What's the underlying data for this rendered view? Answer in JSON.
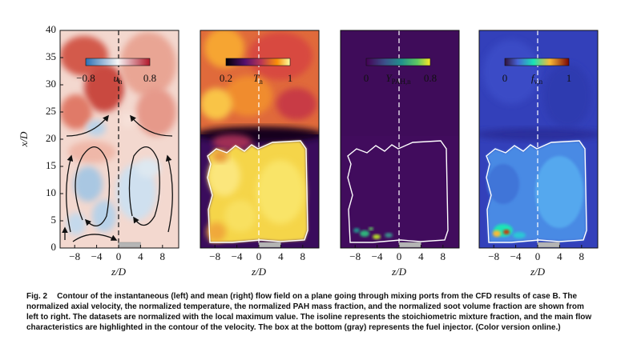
{
  "figure": {
    "y_axis_label": "x/D",
    "x_axis_label": "z/D",
    "y_ticks": [
      "0",
      "5",
      "10",
      "15",
      "20",
      "25",
      "30",
      "35",
      "40"
    ],
    "x_ticks": [
      "−8",
      "−4",
      "0",
      "4",
      "8"
    ],
    "panels": [
      {
        "colorbar": {
          "min": "−0.8",
          "symbol": "u",
          "subscript": "n",
          "max": "0.8"
        }
      },
      {
        "colorbar": {
          "min": "0.2",
          "symbol": "T",
          "subscript": "n",
          "max": "1"
        }
      },
      {
        "colorbar": {
          "min": "0",
          "symbol": "Y",
          "subscript": "PAH,n",
          "max": "0.8"
        }
      },
      {
        "colorbar": {
          "min": "0",
          "symbol": "f",
          "subscript": "v,n",
          "max": "1"
        }
      }
    ]
  },
  "caption": {
    "label": "Fig. 2",
    "text": "Contour of the instantaneous (left) and mean (right) flow field on a plane going through mixing ports from the CFD results of case B. The normalized axial velocity, the normalized temperature, the normalized PAH mass fraction, and the normalized soot volume fraction are shown from left to right. The datasets are normalized with the local maximum value. The isoline represents the stoichiometric mixture fraction, and the main flow characteristics are highlighted in the contour of the velocity. The box at the bottom (gray) represents the fuel injector. (Color version online.)"
  }
}
